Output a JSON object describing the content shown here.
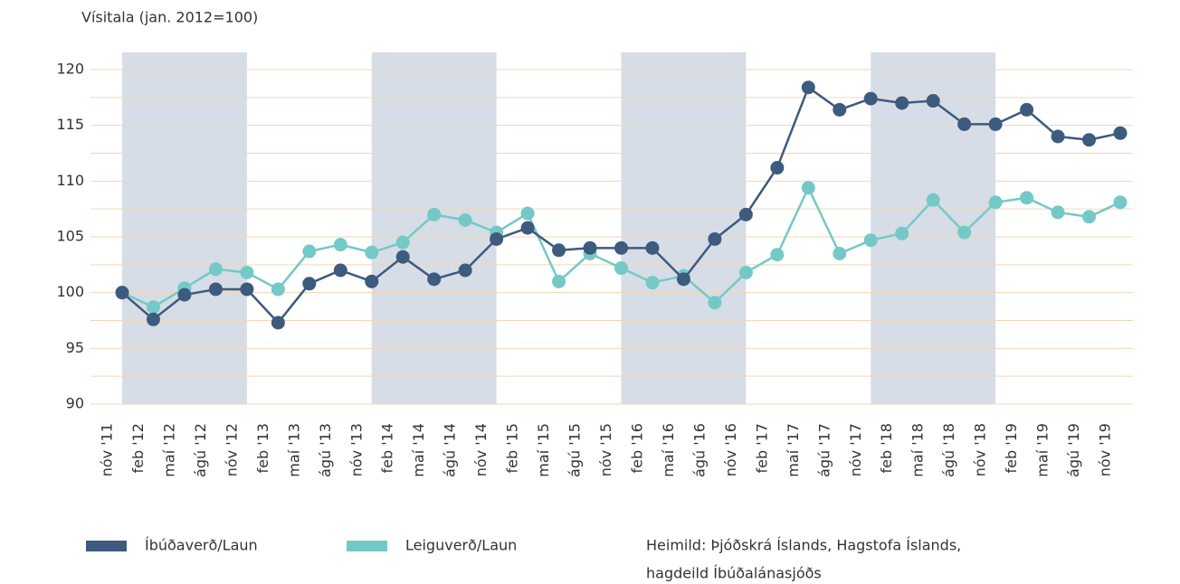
{
  "chart_data": {
    "type": "line",
    "y_label": "Vísitala (jan. 2012=100)",
    "categories": [
      "nóv '11",
      "feb '12",
      "maí '12",
      "ágú '12",
      "nóv '12",
      "feb '13",
      "maí '13",
      "ágú '13",
      "nóv '13",
      "feb '14",
      "maí '14",
      "ágú '14",
      "nóv '14",
      "feb '15",
      "maí '15",
      "ágú '15",
      "nóv '15",
      "feb '16",
      "maí '16",
      "ágú '16",
      "nóv '16",
      "feb '17",
      "maí '17",
      "ágú '17",
      "nóv '17",
      "feb '18",
      "maí '18",
      "ágú '18",
      "nóv '18",
      "feb '19",
      "maí '19",
      "ágú '19",
      "nóv '19"
    ],
    "series": [
      {
        "name": "Íbúðaverð/Laun",
        "color": "#3d5a7f",
        "values": [
          100,
          97.6,
          99.8,
          100.3,
          100.3,
          97.3,
          100.8,
          102,
          101,
          103.2,
          101.2,
          102,
          104.8,
          105.8,
          103.8,
          104,
          104,
          104,
          101.2,
          104.8,
          107,
          111.2,
          118.4,
          116.4,
          117.4,
          117,
          117.2,
          115.1,
          115.1,
          116.4,
          114,
          113.7,
          114.3
        ]
      },
      {
        "name": "Leiguverð/Laun",
        "color": "#74c9c7",
        "values": [
          100,
          98.7,
          100.4,
          102.1,
          101.8,
          100.3,
          103.7,
          104.3,
          103.6,
          104.5,
          107,
          106.5,
          105.4,
          107.1,
          101,
          103.5,
          102.2,
          100.9,
          101.5,
          99.1,
          101.8,
          103.4,
          109.4,
          103.5,
          104.7,
          105.3,
          108.3,
          105.4,
          108.1,
          108.5,
          107.2,
          106.8,
          108.1
        ]
      }
    ],
    "ylim": [
      90,
      120
    ],
    "yticks": [
      90,
      95,
      100,
      105,
      110,
      115,
      120
    ],
    "grid": true,
    "source": [
      "Heimild: Þjóðskrá Íslands, Hagstofa Íslands,",
      "hagdeild Íbúðalánasjóðs"
    ]
  }
}
